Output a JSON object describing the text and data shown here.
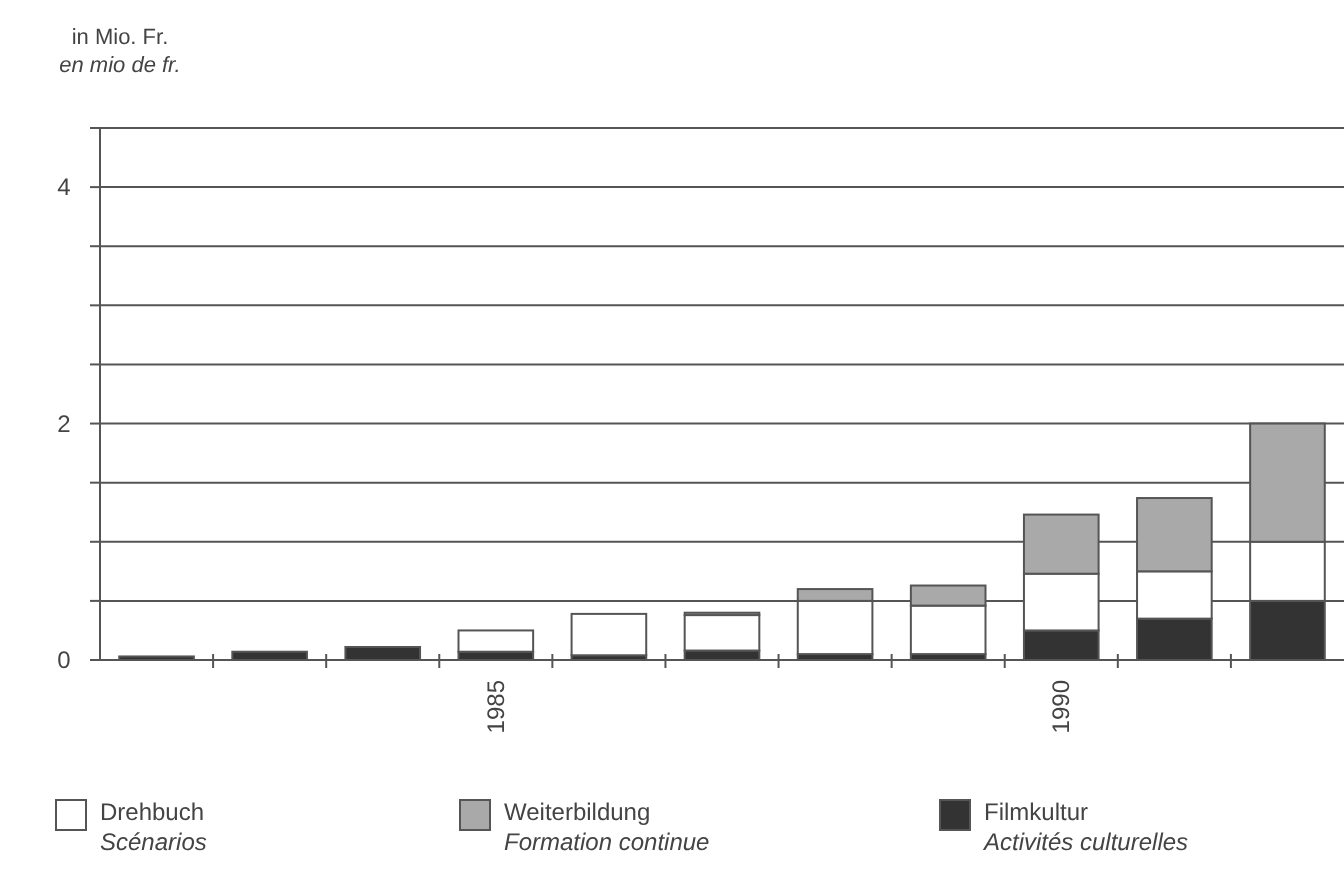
{
  "chart_data": {
    "type": "bar",
    "stacked": true,
    "ylabel": "in Mio. Fr.\nen mio de fr.",
    "categories": [
      null,
      null,
      null,
      "1985",
      null,
      null,
      null,
      null,
      "1990",
      null,
      null
    ],
    "series": [
      {
        "name": "Filmkultur\nActivités culturelles",
        "color": "#333333",
        "values": [
          0.03,
          0.07,
          0.11,
          0.07,
          0.04,
          0.08,
          0.05,
          0.05,
          0.25,
          0.35,
          0.5
        ]
      },
      {
        "name": "Drehbuch\nScénarios",
        "color": "#ffffff",
        "values": [
          0,
          0,
          0,
          0.18,
          0.35,
          0.3,
          0.45,
          0.41,
          0.48,
          0.4,
          0.5
        ]
      },
      {
        "name": "Weiterbildung\nFormation continue",
        "color": "#a9a9a9",
        "values": [
          0,
          0,
          0,
          0,
          0,
          0.02,
          0.1,
          0.17,
          0.5,
          0.62,
          1.0
        ]
      }
    ],
    "ylim": [
      0,
      4.5
    ],
    "yticks": [
      0,
      {
        "value": 0.5,
        "label": null
      },
      {
        "value": 1,
        "label": null
      },
      {
        "value": 1.5,
        "label": null
      },
      2,
      {
        "value": 2.5,
        "label": null
      },
      {
        "value": 3,
        "label": null
      },
      {
        "value": 3.5,
        "label": null
      },
      4,
      {
        "value": 4.5,
        "label": null
      }
    ],
    "grid": "y",
    "legend": "bottom"
  }
}
